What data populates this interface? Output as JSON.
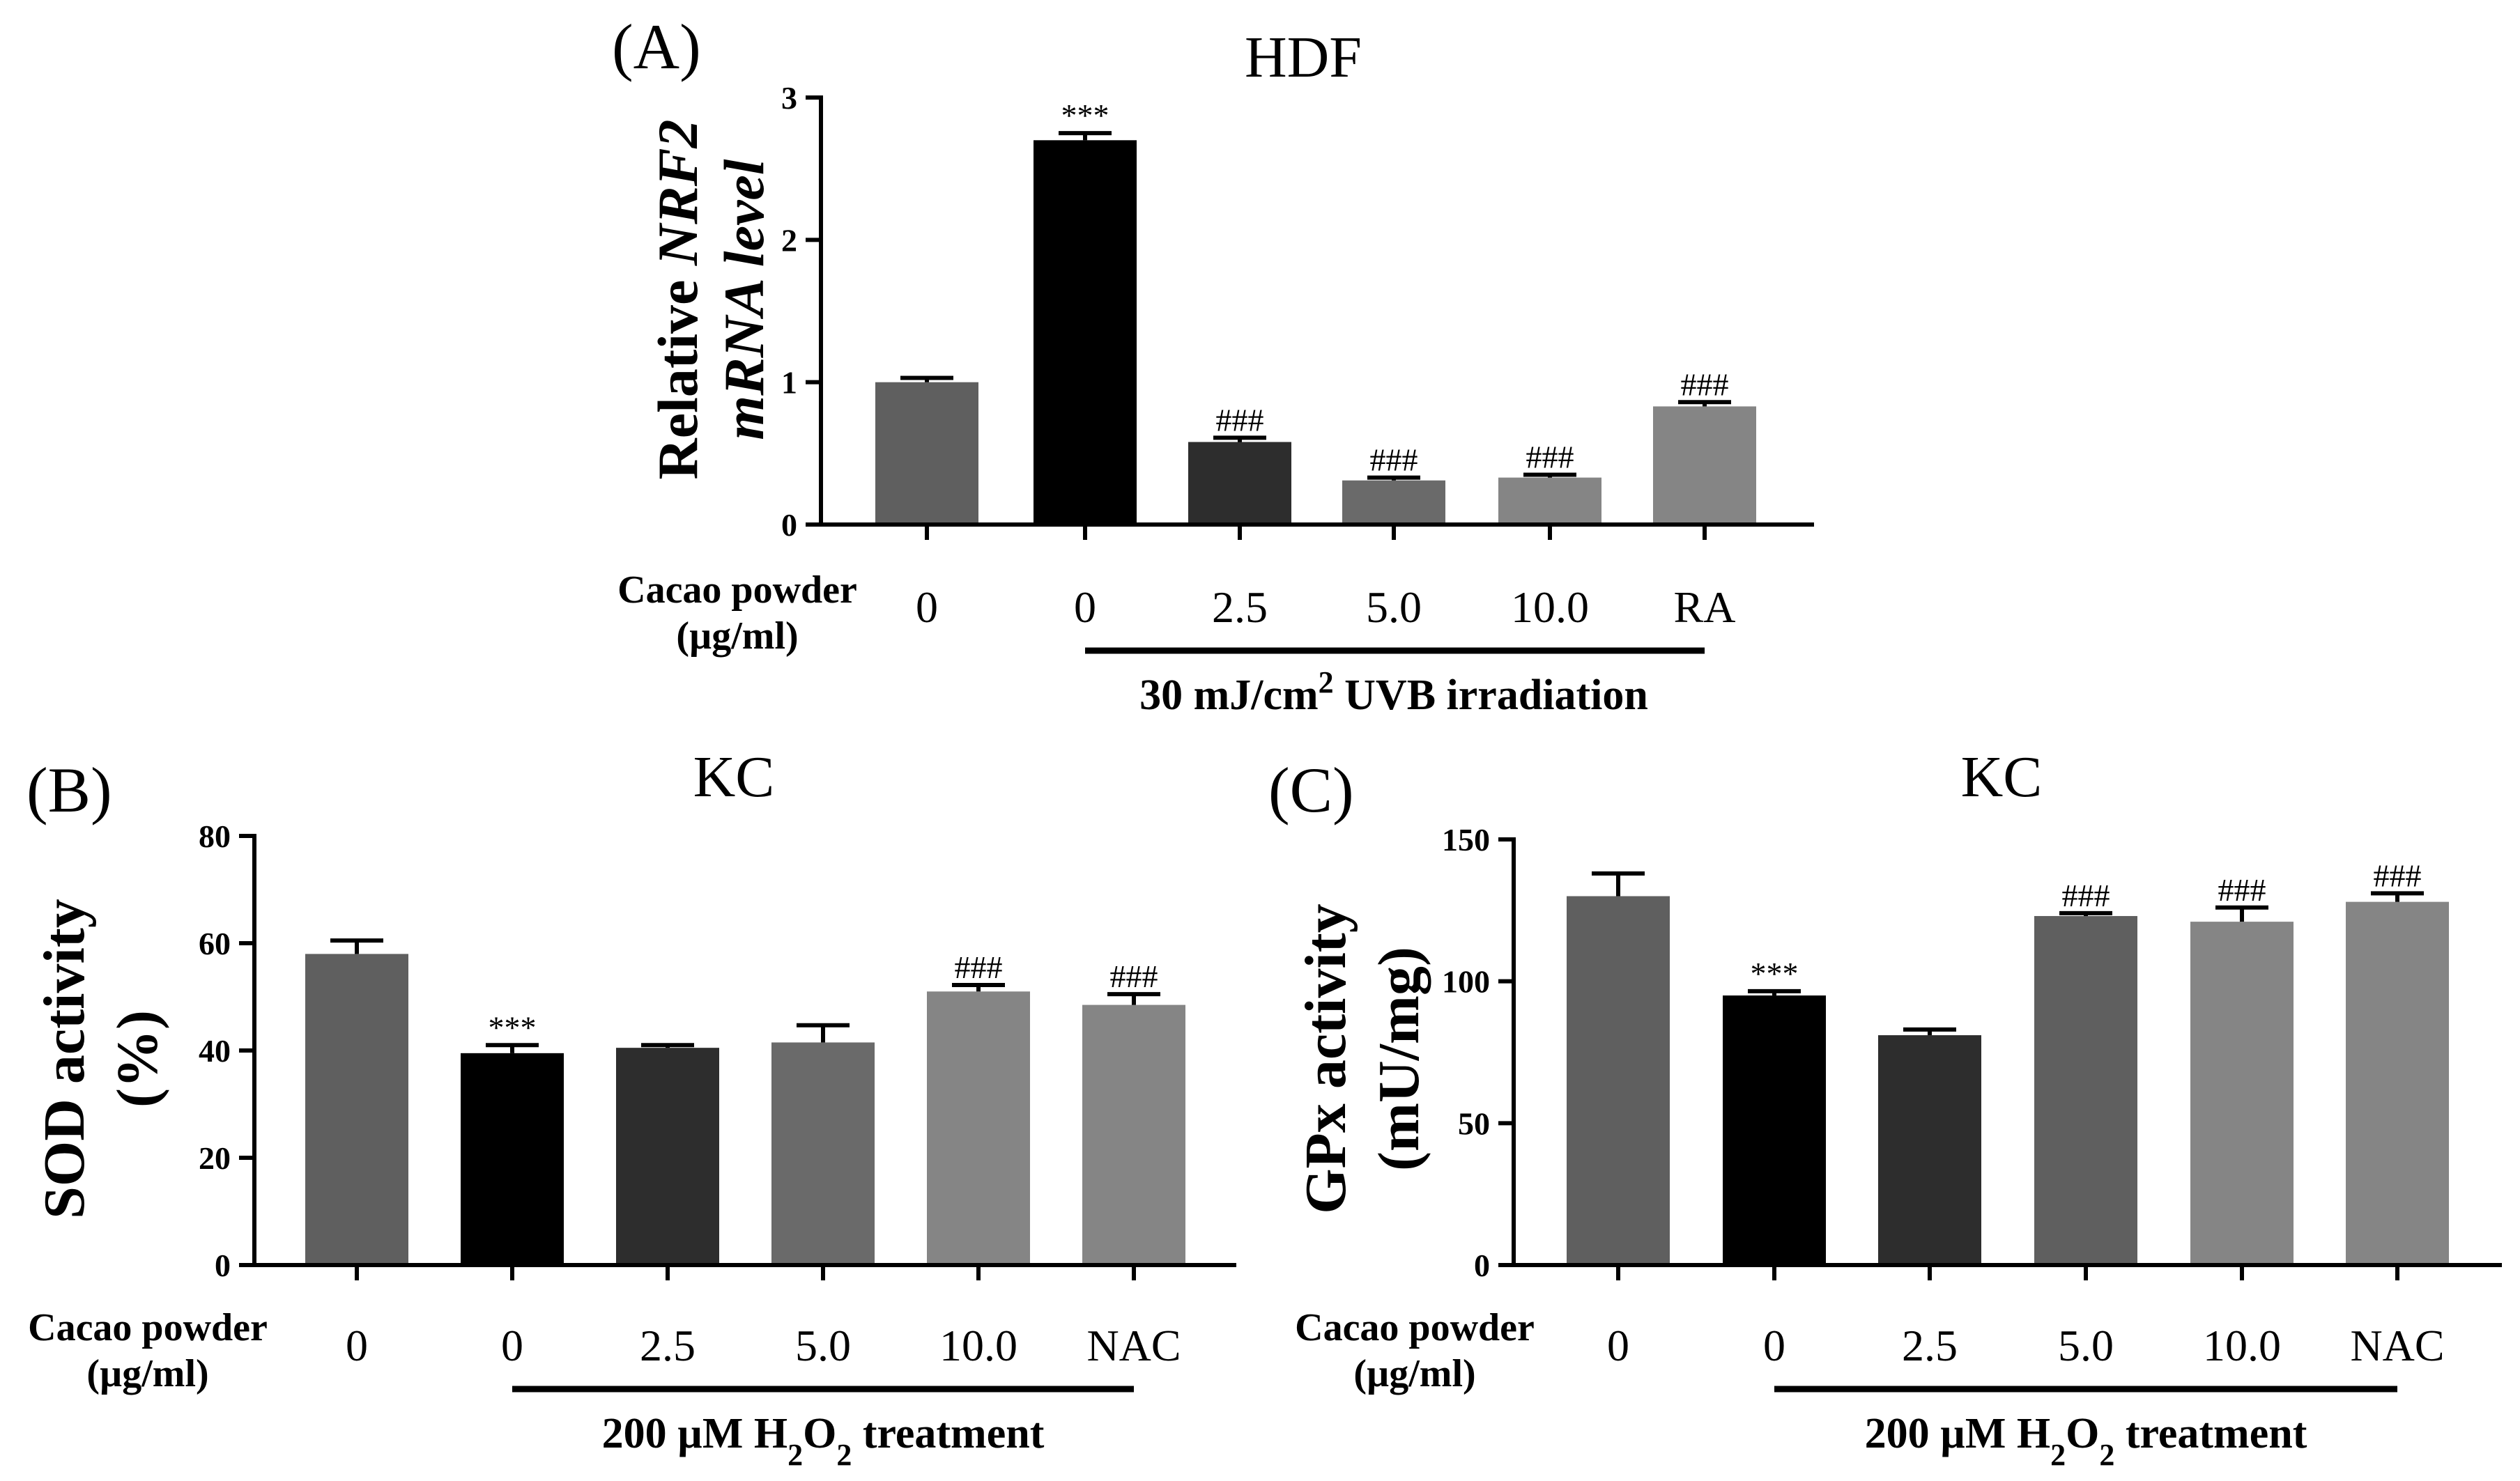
{
  "panels": [
    {
      "id": "A",
      "letter": "(A)",
      "cell": "HDF",
      "ylabel_plain": "Relative ",
      "ylabel_italic_1": "NRF2",
      "ylabel_line2": "mRNA level",
      "row_label_1": "Cacao powder",
      "row_label_2": "(µg/ml)",
      "treatment_pre": "30 mJ/cm",
      "treatment_sup": "2",
      "treatment_post": " UVB irradiation"
    },
    {
      "id": "B",
      "letter": "(B)",
      "cell": "KC",
      "ylabel_line1": "SOD activity",
      "ylabel_line2": "(%)",
      "row_label_1": "Cacao powder",
      "row_label_2": "(µg/ml)",
      "treatment_pre": "200 µM H",
      "treatment_sub1": "2",
      "treatment_mid": "O",
      "treatment_sub2": "2",
      "treatment_post": " treatment"
    },
    {
      "id": "C",
      "letter": "(C)",
      "cell": "KC",
      "ylabel_line1": "GPx activity",
      "ylabel_line2": "(mU/mg)",
      "row_label_1": "Cacao powder",
      "row_label_2": "(µg/ml)",
      "treatment_pre": "200 µM H",
      "treatment_sub1": "2",
      "treatment_mid": "O",
      "treatment_sub2": "2",
      "treatment_post": " treatment"
    }
  ],
  "colors": {
    "gray_dark": "#5f5f5f",
    "black": "#000000",
    "charcoal": "#2d2d2d",
    "gray_mid": "#6a6a6a",
    "gray_light": "#858585"
  },
  "chart_data": [
    {
      "type": "bar",
      "panel": "A",
      "title": "HDF",
      "ylabel": "Relative NRF2 mRNA level",
      "xlabel": "Cacao powder (µg/ml)",
      "categories": [
        "0",
        "0",
        "2.5",
        "5.0",
        "10.0",
        "RA"
      ],
      "values": [
        1.0,
        2.7,
        0.58,
        0.31,
        0.33,
        0.83
      ],
      "errors": [
        0.03,
        0.05,
        0.03,
        0.02,
        0.02,
        0.03
      ],
      "annotations": [
        "",
        "***",
        "###",
        "###",
        "###",
        "###"
      ],
      "bar_colors": [
        "#5f5f5f",
        "#000000",
        "#2d2d2d",
        "#6a6a6a",
        "#858585",
        "#858585"
      ],
      "ylim": [
        0,
        3
      ],
      "yticks": [
        "0",
        "1",
        "2",
        "3"
      ],
      "treatment": "30 mJ/cm2 UVB irradiation"
    },
    {
      "type": "bar",
      "panel": "B",
      "title": "KC",
      "ylabel": "SOD activity (%)",
      "xlabel": "Cacao powder (µg/ml)",
      "categories": [
        "0",
        "0",
        "2.5",
        "5.0",
        "10.0",
        "NAC"
      ],
      "values": [
        58,
        39.5,
        40.5,
        41.5,
        51,
        48.5
      ],
      "errors": [
        2.5,
        1.5,
        0.5,
        3.2,
        1.2,
        2.0
      ],
      "annotations": [
        "",
        "***",
        "",
        "",
        "###",
        "###"
      ],
      "bar_colors": [
        "#5f5f5f",
        "#000000",
        "#2d2d2d",
        "#6a6a6a",
        "#858585",
        "#858585"
      ],
      "ylim": [
        0,
        80
      ],
      "yticks": [
        "0",
        "20",
        "40",
        "60",
        "80"
      ],
      "treatment": "200 µM H2O2 treatment"
    },
    {
      "type": "bar",
      "panel": "C",
      "title": "KC",
      "ylabel": "GPx activity (mU/mg)",
      "xlabel": "Cacao powder (µg/ml)",
      "categories": [
        "0",
        "0",
        "2.5",
        "5.0",
        "10.0",
        "NAC"
      ],
      "values": [
        130,
        95,
        81,
        123,
        121,
        128
      ],
      "errors": [
        8,
        1.5,
        2,
        1,
        5,
        3
      ],
      "annotations": [
        "",
        "***",
        "",
        "###",
        "###",
        "###"
      ],
      "bar_colors": [
        "#5f5f5f",
        "#000000",
        "#2d2d2d",
        "#5f5f5f",
        "#858585",
        "#858585"
      ],
      "ylim": [
        0,
        150
      ],
      "yticks": [
        "0",
        "50",
        "100",
        "150"
      ],
      "treatment": "200 µM H2O2 treatment"
    }
  ]
}
